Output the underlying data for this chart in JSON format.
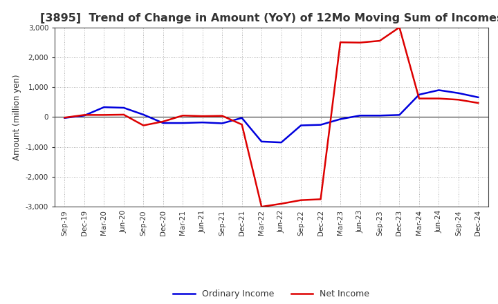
{
  "title": "[3895]  Trend of Change in Amount (YoY) of 12Mo Moving Sum of Incomes",
  "ylabel": "Amount (million yen)",
  "ylim": [
    -3000,
    3000
  ],
  "yticks": [
    -3000,
    -2000,
    -1000,
    0,
    1000,
    2000,
    3000
  ],
  "background_color": "#ffffff",
  "plot_bg_color": "#ffffff",
  "grid_color": "#999999",
  "text_color": "#333333",
  "labels": [
    "Sep-19",
    "Dec-19",
    "Mar-20",
    "Jun-20",
    "Sep-20",
    "Dec-20",
    "Mar-21",
    "Jun-21",
    "Sep-21",
    "Dec-21",
    "Mar-22",
    "Jun-22",
    "Sep-22",
    "Dec-22",
    "Mar-23",
    "Jun-23",
    "Sep-23",
    "Dec-23",
    "Mar-24",
    "Jun-24",
    "Sep-24",
    "Dec-24"
  ],
  "ordinary_income": [
    -30,
    50,
    330,
    310,
    80,
    -200,
    -200,
    -180,
    -210,
    -30,
    -820,
    -850,
    -280,
    -260,
    -70,
    50,
    50,
    70,
    750,
    900,
    800,
    660
  ],
  "net_income": [
    -20,
    70,
    70,
    80,
    -280,
    -150,
    50,
    30,
    40,
    -250,
    -3000,
    -2900,
    -2780,
    -2750,
    2500,
    2490,
    2550,
    3000,
    620,
    620,
    580,
    470
  ],
  "ordinary_color": "#0000dd",
  "net_color": "#dd0000",
  "line_width": 1.8,
  "title_fontsize": 11.5,
  "tick_fontsize": 7.5,
  "ylabel_fontsize": 8.5,
  "legend_fontsize": 9
}
